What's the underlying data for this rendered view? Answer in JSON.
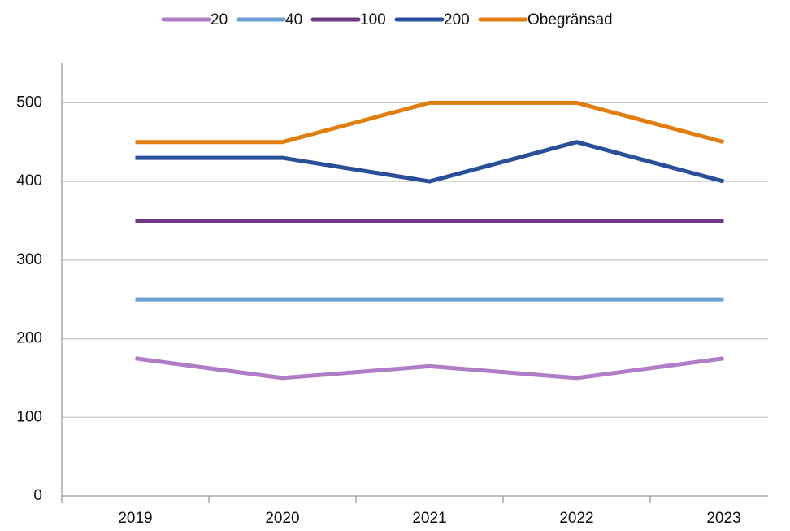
{
  "chart_data": {
    "type": "line",
    "categories": [
      "2019",
      "2020",
      "2021",
      "2022",
      "2023"
    ],
    "series": [
      {
        "name": "20",
        "color": "#b07cc6",
        "values": [
          175,
          150,
          165,
          150,
          175
        ]
      },
      {
        "name": "40",
        "color": "#6a9fd8",
        "values": [
          250,
          250,
          250,
          250,
          250
        ]
      },
      {
        "name": "100",
        "color": "#6a3a82",
        "values": [
          350,
          350,
          350,
          350,
          350
        ]
      },
      {
        "name": "200",
        "color": "#2a4f98",
        "values": [
          430,
          430,
          400,
          450,
          400
        ]
      },
      {
        "name": "Obegränsad",
        "color": "#e07f10",
        "values": [
          450,
          450,
          500,
          500,
          450
        ]
      }
    ],
    "ylim": [
      0,
      550
    ],
    "yticks": [
      0,
      100,
      200,
      300,
      400,
      500
    ],
    "grid": true,
    "legend": "top"
  }
}
